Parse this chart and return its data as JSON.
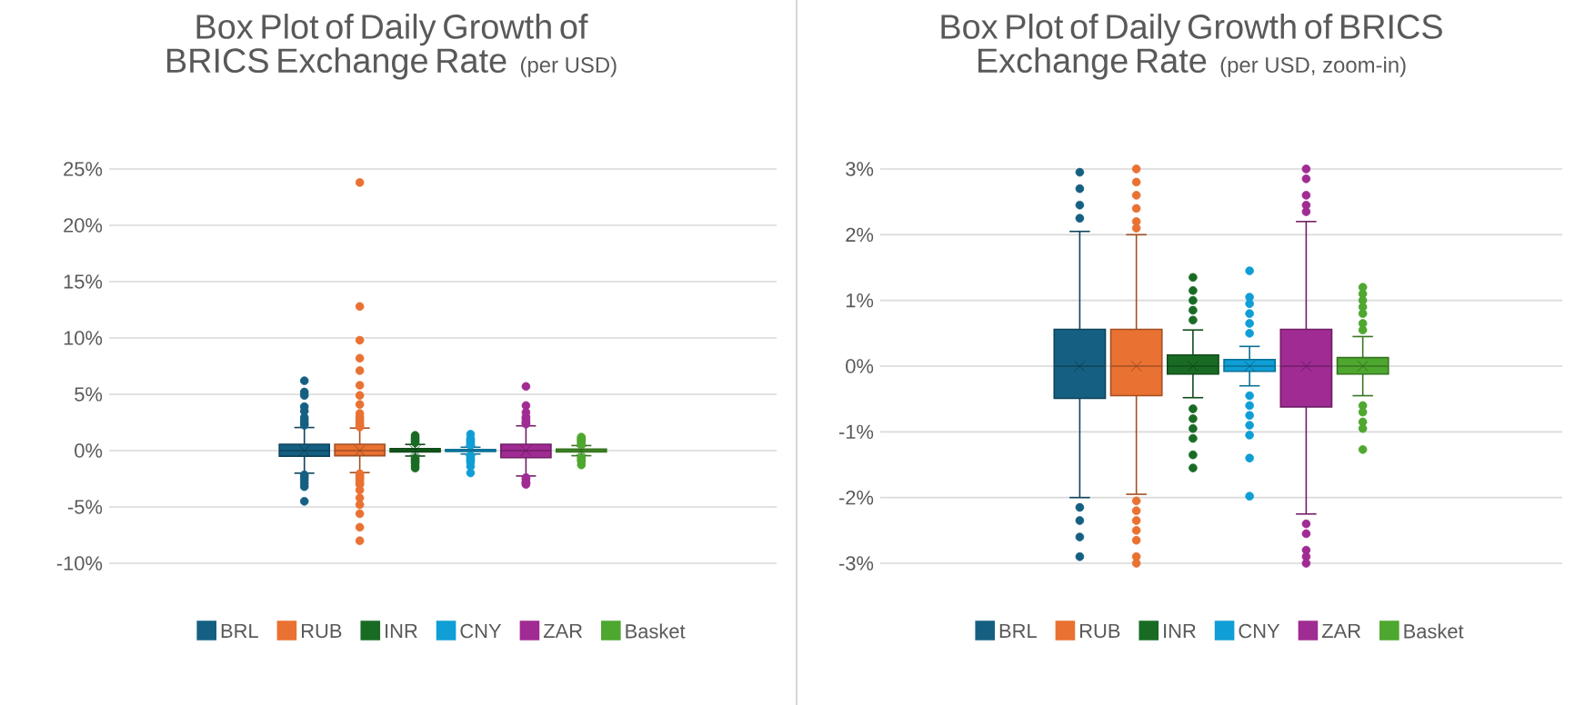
{
  "chart_data": [
    {
      "type": "box",
      "title": "Box Plot of Daily Growth of BRICS Exchange Rate",
      "subtitle": "(per USD)",
      "categories": [
        null
      ],
      "ylim": [
        -10,
        25
      ],
      "yticks": [
        {
          "value": -10,
          "label": "-10%"
        },
        {
          "value": -5,
          "label": "-5%"
        },
        {
          "value": 0,
          "label": "0%"
        },
        {
          "value": 5,
          "label": "5%"
        },
        {
          "value": 10,
          "label": "10%"
        },
        {
          "value": 15,
          "label": "15%"
        },
        {
          "value": 20,
          "label": "20%"
        },
        {
          "value": 25,
          "label": "25%"
        }
      ],
      "grid": "y",
      "legend": "bottom",
      "tick_labels": "y",
      "marker": "circle",
      "series": [
        {
          "name": "BRL",
          "color": "#156082",
          "boxes": [
            {
              "low": -2.0,
              "q1": -0.49,
              "median": 0.0,
              "q3": 0.56,
              "high": 2.05,
              "mean": 0.0,
              "outliers": [
                6.2,
                5.2,
                4.9,
                3.9,
                3.5,
                2.95,
                2.7,
                2.45,
                2.25,
                -2.15,
                -2.35,
                -2.6,
                -2.9,
                -3.2,
                -4.5
              ]
            }
          ]
        },
        {
          "name": "RUB",
          "color": "#e97132",
          "boxes": [
            {
              "low": -1.95,
              "q1": -0.45,
              "median": 0.0,
              "q3": 0.56,
              "high": 2.0,
              "mean": 0.0,
              "outliers": [
                23.8,
                12.8,
                9.8,
                8.2,
                7.1,
                5.8,
                4.9,
                4.1,
                3.3,
                3.0,
                2.8,
                2.6,
                2.4,
                2.2,
                2.1,
                -2.05,
                -2.2,
                -2.35,
                -2.5,
                -2.65,
                -2.9,
                -3.0,
                -3.5,
                -4.2,
                -4.8,
                -5.6,
                -6.8,
                -8.0
              ]
            }
          ]
        },
        {
          "name": "INR",
          "color": "#196b24",
          "boxes": [
            {
              "low": -0.48,
              "q1": -0.12,
              "median": 0.0,
              "q3": 0.17,
              "high": 0.55,
              "mean": 0.0,
              "outliers": [
                1.35,
                1.15,
                1.0,
                0.85,
                0.7,
                -0.65,
                -0.8,
                -0.95,
                -1.1,
                -1.35,
                -1.55
              ]
            }
          ]
        },
        {
          "name": "CNY",
          "color": "#0f9ed5",
          "boxes": [
            {
              "low": -0.3,
              "q1": -0.08,
              "median": 0.0,
              "q3": 0.1,
              "high": 0.3,
              "mean": 0.0,
              "outliers": [
                1.45,
                1.05,
                0.95,
                0.8,
                0.65,
                0.5,
                -0.45,
                -0.6,
                -0.75,
                -0.9,
                -1.05,
                -1.4,
                -1.98
              ]
            }
          ]
        },
        {
          "name": "ZAR",
          "color": "#a02b93",
          "boxes": [
            {
              "low": -2.25,
              "q1": -0.62,
              "median": 0.0,
              "q3": 0.56,
              "high": 2.2,
              "mean": 0.0,
              "outliers": [
                5.7,
                4.0,
                3.4,
                3.0,
                2.85,
                2.6,
                2.45,
                2.35,
                -2.4,
                -2.55,
                -2.8,
                -2.9,
                -3.0
              ]
            }
          ]
        },
        {
          "name": "Basket",
          "color": "#4ea72e",
          "boxes": [
            {
              "low": -0.45,
              "q1": -0.12,
              "median": 0.0,
              "q3": 0.13,
              "high": 0.45,
              "mean": 0.0,
              "outliers": [
                1.2,
                1.1,
                1.0,
                0.9,
                0.8,
                0.65,
                0.55,
                -0.6,
                -0.7,
                -0.85,
                -0.95,
                -1.27
              ]
            }
          ]
        }
      ]
    },
    {
      "type": "box",
      "title": "Box Plot of Daily Growth of BRICS Exchange Rate",
      "subtitle": "(per USD, zoom-in)",
      "categories": [
        null
      ],
      "ylim": [
        -3,
        3
      ],
      "yticks": [
        {
          "value": -3,
          "label": "-3%"
        },
        {
          "value": -2,
          "label": "-2%"
        },
        {
          "value": -1,
          "label": "-1%"
        },
        {
          "value": 0,
          "label": "0%"
        },
        {
          "value": 1,
          "label": "1%"
        },
        {
          "value": 2,
          "label": "2%"
        },
        {
          "value": 3,
          "label": "3%"
        }
      ],
      "grid": "y",
      "legend": "bottom",
      "tick_labels": "y",
      "marker": "circle",
      "series": [
        {
          "name": "BRL",
          "color": "#156082",
          "boxes": [
            {
              "low": -2.0,
              "q1": -0.49,
              "median": 0.0,
              "q3": 0.56,
              "high": 2.05,
              "mean": 0.0,
              "outliers": [
                2.95,
                2.7,
                2.45,
                2.25,
                -2.15,
                -2.35,
                -2.6,
                -2.9
              ]
            }
          ]
        },
        {
          "name": "RUB",
          "color": "#e97132",
          "boxes": [
            {
              "low": -1.95,
              "q1": -0.45,
              "median": 0.0,
              "q3": 0.56,
              "high": 2.0,
              "mean": 0.0,
              "outliers": [
                3.0,
                2.8,
                2.6,
                2.4,
                2.2,
                2.1,
                -2.05,
                -2.2,
                -2.35,
                -2.5,
                -2.65,
                -2.9,
                -3.0
              ]
            }
          ]
        },
        {
          "name": "INR",
          "color": "#196b24",
          "boxes": [
            {
              "low": -0.48,
              "q1": -0.12,
              "median": 0.0,
              "q3": 0.17,
              "high": 0.55,
              "mean": 0.0,
              "outliers": [
                1.35,
                1.15,
                1.0,
                0.85,
                0.7,
                -0.65,
                -0.8,
                -0.95,
                -1.1,
                -1.35,
                -1.55
              ]
            }
          ]
        },
        {
          "name": "CNY",
          "color": "#0f9ed5",
          "boxes": [
            {
              "low": -0.3,
              "q1": -0.08,
              "median": 0.0,
              "q3": 0.1,
              "high": 0.3,
              "mean": 0.0,
              "outliers": [
                1.45,
                1.05,
                0.95,
                0.8,
                0.65,
                0.5,
                -0.45,
                -0.6,
                -0.75,
                -0.9,
                -1.05,
                -1.4,
                -1.98
              ]
            }
          ]
        },
        {
          "name": "ZAR",
          "color": "#a02b93",
          "boxes": [
            {
              "low": -2.25,
              "q1": -0.62,
              "median": 0.0,
              "q3": 0.56,
              "high": 2.2,
              "mean": 0.0,
              "outliers": [
                3.0,
                2.85,
                2.6,
                2.45,
                2.35,
                -2.4,
                -2.55,
                -2.8,
                -2.9,
                -3.0
              ]
            }
          ]
        },
        {
          "name": "Basket",
          "color": "#4ea72e",
          "boxes": [
            {
              "low": -0.45,
              "q1": -0.12,
              "median": 0.0,
              "q3": 0.13,
              "high": 0.45,
              "mean": 0.0,
              "outliers": [
                1.2,
                1.1,
                1.0,
                0.9,
                0.8,
                0.65,
                0.55,
                -0.6,
                -0.7,
                -0.85,
                -0.95,
                -1.27
              ]
            }
          ]
        }
      ]
    }
  ]
}
